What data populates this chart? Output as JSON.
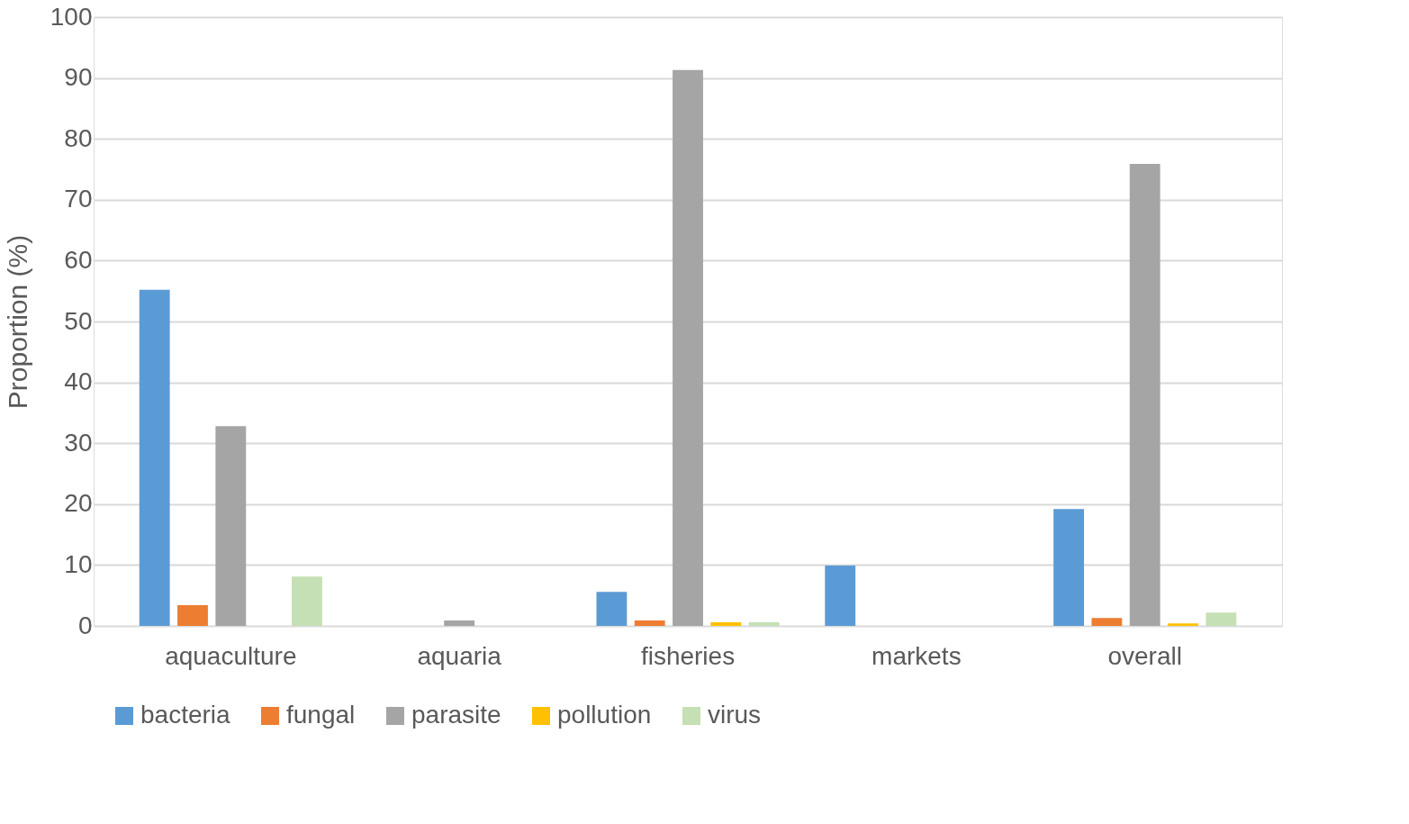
{
  "chart_data": {
    "type": "bar",
    "ylabel": "Proportion (%)",
    "categories": [
      "aquaculture",
      "aquaria",
      "fisheries",
      "markets",
      "overall"
    ],
    "series": [
      {
        "name": "bacteria",
        "color": "#5b9bd5",
        "values": [
          55.2,
          0,
          5.6,
          9.9,
          19.2
        ]
      },
      {
        "name": "fungal",
        "color": "#ed7d31",
        "values": [
          3.4,
          0,
          0.9,
          0,
          1.3
        ]
      },
      {
        "name": "parasite",
        "color": "#a5a5a5",
        "values": [
          32.8,
          0.9,
          91.3,
          0,
          75.9
        ]
      },
      {
        "name": "pollution",
        "color": "#ffc000",
        "values": [
          0,
          0,
          0.6,
          0,
          0.4
        ]
      },
      {
        "name": "virus",
        "color": "#c5e0b4",
        "values": [
          8.1,
          0,
          0.6,
          0,
          2.2
        ]
      }
    ],
    "ylim": [
      0,
      100
    ],
    "yticks": [
      0,
      10,
      20,
      30,
      40,
      50,
      60,
      70,
      80,
      90,
      100
    ],
    "grid": "y",
    "legend": "bottom"
  }
}
